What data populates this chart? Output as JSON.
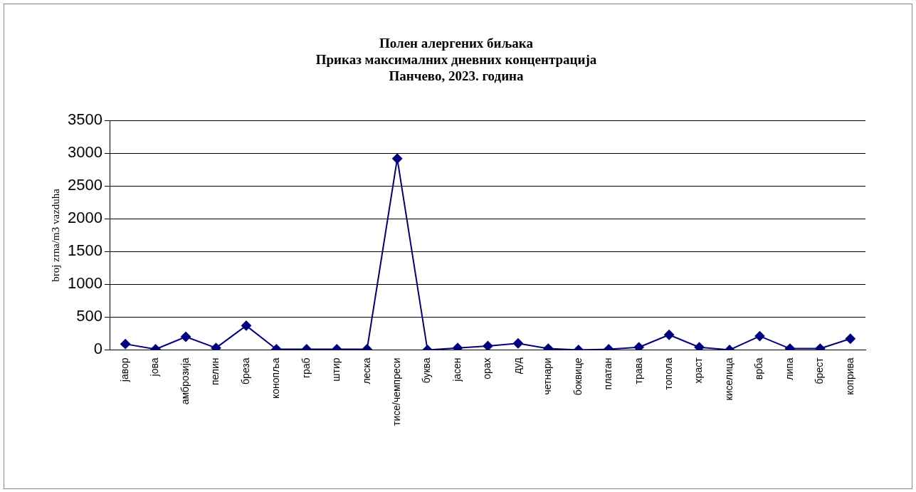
{
  "chart_data": {
    "type": "line",
    "title": [
      "Полен алергених биљака",
      "Приказ максималних дневних концентрација",
      "Панчево, 2023. година"
    ],
    "ylabel": "broj zrna/m3 vazduha",
    "categories": [
      "јавор",
      "јова",
      "амброзија",
      "пелин",
      "бреза",
      "конопља",
      "граб",
      "штир",
      "леска",
      "тисе/чемпреси",
      "буква",
      "јасен",
      "орах",
      "дуд",
      "четнари",
      "боквице",
      "платан",
      "трава",
      "топола",
      "храст",
      "киселица",
      "врба",
      "липа",
      "брест",
      "коприва"
    ],
    "series": [
      {
        "color": "#000080",
        "values": [
          90,
          10,
          200,
          30,
          370,
          10,
          10,
          10,
          10,
          2920,
          0,
          30,
          60,
          100,
          20,
          0,
          10,
          40,
          230,
          40,
          0,
          210,
          20,
          20,
          170
        ]
      }
    ],
    "ylim": [
      0,
      3500
    ],
    "yticks": [
      0,
      500,
      1000,
      1500,
      2000,
      2500,
      3000,
      3500
    ],
    "grid": "y",
    "legend": false,
    "marker": "diamond",
    "line_style": "solid"
  }
}
